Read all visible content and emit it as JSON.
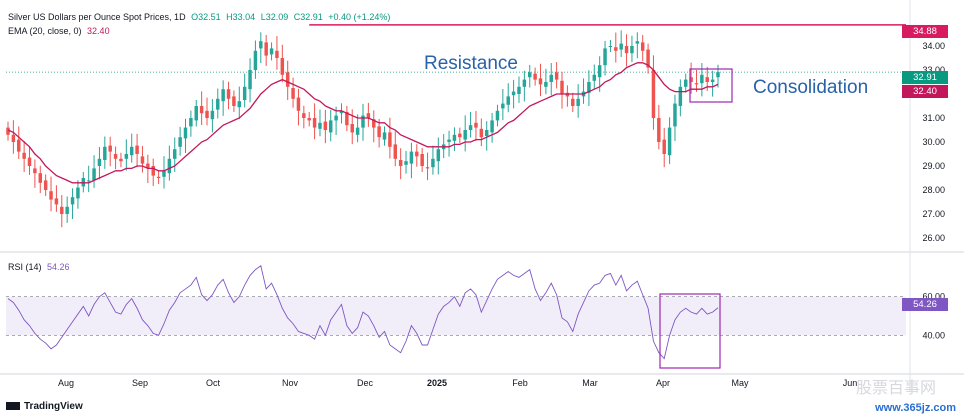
{
  "header": {
    "symbol": "Silver US Dollars per Ounce Spot Prices, 1D",
    "open": "O32.51",
    "high": "H33.04",
    "low": "L32.09",
    "close": "C32.91",
    "change": "+0.40 (+1.24%)",
    "ema_label": "EMA (20, close, 0)",
    "ema_value": "32.40"
  },
  "rsi_header": {
    "label": "RSI (14)",
    "value": "54.26"
  },
  "annotations": {
    "resistance": "Resistance",
    "consolidation": "Consolidation"
  },
  "price_labels": {
    "resistance": "34.88",
    "last": "32.91",
    "ema": "32.40",
    "rsi": "54.26"
  },
  "footer": {
    "brand": "TradingView",
    "watermark": "www.365jz.com",
    "watermark_cn": "股票百事网"
  },
  "colors": {
    "up": "#26a69a",
    "down": "#ef5350",
    "ema": "#c2185b",
    "resistance": "#d81b60",
    "rsi": "#7e57c2",
    "box": "#9c27b0"
  },
  "chart_data": [
    {
      "type": "candlestick",
      "title": "Silver US Dollars per Ounce Spot Prices, 1D",
      "ylim": [
        25.5,
        35.5
      ],
      "y_ticks": [
        "26.00",
        "27.00",
        "28.00",
        "29.00",
        "30.00",
        "31.00",
        "32.00",
        "33.00",
        "34.00"
      ],
      "x_ticks": [
        "Aug",
        "Sep",
        "Oct",
        "Nov",
        "Dec",
        "2025",
        "Feb",
        "Mar",
        "Apr",
        "May",
        "Jun"
      ],
      "resistance_level": 34.88,
      "close_series": [
        30.3,
        30.0,
        29.6,
        29.3,
        29.0,
        28.7,
        28.3,
        28.0,
        27.6,
        27.4,
        27.0,
        27.3,
        27.7,
        28.1,
        28.5,
        28.4,
        28.9,
        29.3,
        29.8,
        29.6,
        29.3,
        29.2,
        29.5,
        29.8,
        29.5,
        29.1,
        28.9,
        28.6,
        28.5,
        28.8,
        29.3,
        29.7,
        30.2,
        30.6,
        31.0,
        31.5,
        31.2,
        31.0,
        31.3,
        31.8,
        32.2,
        31.8,
        31.5,
        31.7,
        32.3,
        33.0,
        33.8,
        34.2,
        33.6,
        33.9,
        33.5,
        32.8,
        32.3,
        31.8,
        31.3,
        31.0,
        30.9,
        30.6,
        30.8,
        30.5,
        30.9,
        31.1,
        31.3,
        30.7,
        30.4,
        30.6,
        31.1,
        31.0,
        30.6,
        30.2,
        30.4,
        29.8,
        29.3,
        29.0,
        29.2,
        29.6,
        29.4,
        29.0,
        28.9,
        29.3,
        29.7,
        29.9,
        30.1,
        30.3,
        30.2,
        30.5,
        30.7,
        30.6,
        30.2,
        30.5,
        30.9,
        31.3,
        31.6,
        31.9,
        32.1,
        32.3,
        32.6,
        32.9,
        32.6,
        32.4,
        32.5,
        32.8,
        32.6,
        32.0,
        31.9,
        31.5,
        31.8,
        32.1,
        32.5,
        32.8,
        33.2,
        33.9,
        34.0,
        33.8,
        34.1,
        33.7,
        34.0,
        34.2,
        33.8,
        33.1,
        31.0,
        30.0,
        29.5,
        30.6,
        31.6,
        32.3,
        32.6,
        32.5,
        32.4,
        32.8,
        32.5,
        32.6,
        32.91
      ],
      "ema_series": [
        30.5,
        30.4,
        30.2,
        30.0,
        29.8,
        29.5,
        29.3,
        29.0,
        28.8,
        28.6,
        28.5,
        28.4,
        28.3,
        28.3,
        28.3,
        28.3,
        28.4,
        28.5,
        28.6,
        28.7,
        28.8,
        28.8,
        28.9,
        28.9,
        29.0,
        29.0,
        28.9,
        28.9,
        28.8,
        28.8,
        28.9,
        29.0,
        29.2,
        29.4,
        29.6,
        29.8,
        30.0,
        30.1,
        30.3,
        30.5,
        30.7,
        30.8,
        30.9,
        31.0,
        31.2,
        31.4,
        31.7,
        32.0,
        32.2,
        32.4,
        32.5,
        32.6,
        32.5,
        32.4,
        32.3,
        32.2,
        32.0,
        31.8,
        31.7,
        31.5,
        31.4,
        31.3,
        31.3,
        31.2,
        31.1,
        31.0,
        31.0,
        31.0,
        30.9,
        30.8,
        30.8,
        30.6,
        30.5,
        30.3,
        30.2,
        30.1,
        30.0,
        29.9,
        29.8,
        29.8,
        29.8,
        29.8,
        29.8,
        29.9,
        29.9,
        30.0,
        30.0,
        30.1,
        30.1,
        30.2,
        30.3,
        30.4,
        30.6,
        30.8,
        30.9,
        31.1,
        31.3,
        31.5,
        31.6,
        31.7,
        31.8,
        31.9,
        32.0,
        32.0,
        32.0,
        32.0,
        32.0,
        32.0,
        32.1,
        32.2,
        32.3,
        32.5,
        32.6,
        32.8,
        32.9,
        33.1,
        33.2,
        33.3,
        33.3,
        33.2,
        33.0,
        32.7,
        32.4,
        32.2,
        32.1,
        32.1,
        32.1,
        32.2,
        32.2,
        32.2,
        32.3,
        32.3,
        32.4
      ]
    },
    {
      "type": "line",
      "title": "RSI (14)",
      "ylim": [
        20,
        80
      ],
      "y_ticks": [
        "60.00",
        "40.00"
      ],
      "band": [
        40,
        60
      ],
      "values": [
        59,
        57,
        53,
        48,
        45,
        41,
        38,
        36,
        33,
        35,
        39,
        43,
        47,
        51,
        55,
        50,
        56,
        60,
        62,
        57,
        52,
        51,
        56,
        59,
        54,
        48,
        45,
        41,
        40,
        46,
        53,
        57,
        62,
        64,
        66,
        70,
        61,
        58,
        61,
        66,
        69,
        62,
        57,
        60,
        66,
        71,
        74,
        76,
        64,
        67,
        61,
        54,
        49,
        46,
        42,
        41,
        40,
        38,
        45,
        40,
        48,
        52,
        56,
        45,
        41,
        44,
        52,
        50,
        45,
        39,
        42,
        35,
        33,
        31,
        37,
        45,
        41,
        35,
        35,
        43,
        51,
        55,
        57,
        60,
        55,
        62,
        64,
        61,
        52,
        58,
        64,
        69,
        71,
        73,
        71,
        70,
        72,
        74,
        64,
        58,
        62,
        67,
        61,
        49,
        47,
        42,
        51,
        57,
        63,
        66,
        67,
        71,
        72,
        66,
        71,
        63,
        66,
        68,
        61,
        54,
        37,
        31,
        28,
        40,
        48,
        52,
        54,
        52,
        51,
        54,
        51,
        52,
        54.26
      ]
    }
  ]
}
